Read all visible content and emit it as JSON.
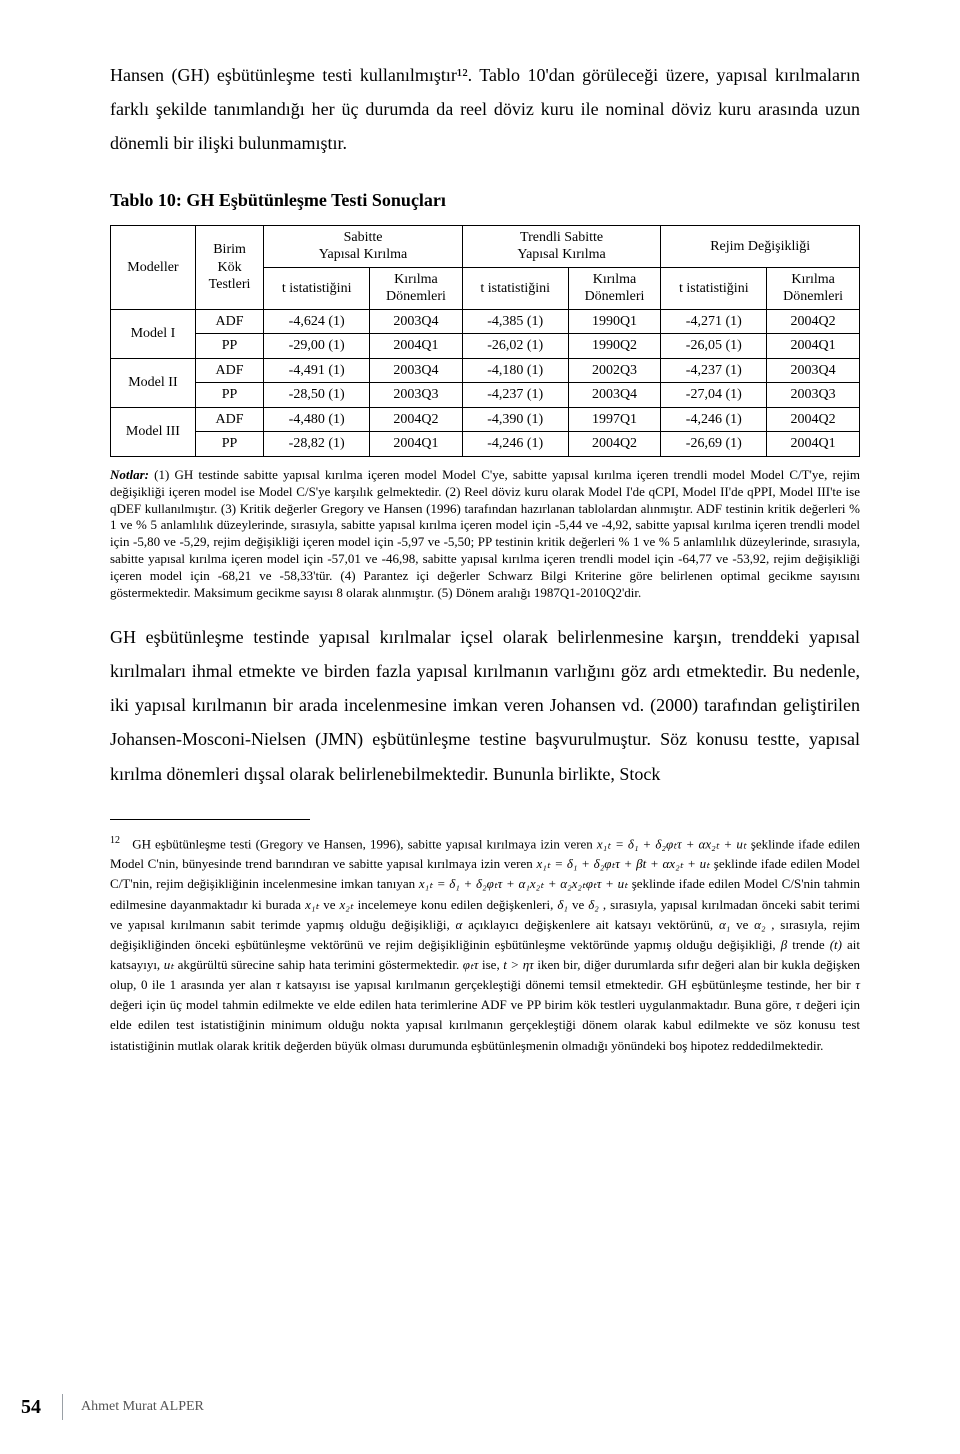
{
  "intro": "Hansen (GH) eşbütünleşme testi kullanılmıştır¹². Tablo 10'dan görüleceği üzere, yapısal kırılmaların farklı şekilde tanımlandığı her üç durumda da reel döviz kuru ile nominal döviz kuru arasında uzun dönemli bir ilişki bulunmamıştır.",
  "table_title": "Tablo 10: GH Eşbütünleşme Testi Sonuçları",
  "table": {
    "head": {
      "modeller": "Modeller",
      "birim": "Birim\nKök\nTestleri",
      "grp_sabitte": "Sabitte\nYapısal Kırılma",
      "grp_trendli": "Trendli Sabitte\nYapısal Kırılma",
      "grp_rejim": "Rejim Değişikliği",
      "tist": "t istatistiğini",
      "kirilma": "Kırılma\nDönemleri"
    },
    "rows": [
      {
        "model": "Model I",
        "test": "ADF",
        "c": [
          "-4,624 (1)",
          "2003Q4",
          "-4,385 (1)",
          "1990Q1",
          "-4,271 (1)",
          "2004Q2"
        ]
      },
      {
        "model": "",
        "test": "PP",
        "c": [
          "-29,00 (1)",
          "2004Q1",
          "-26,02 (1)",
          "1990Q2",
          "-26,05 (1)",
          "2004Q1"
        ]
      },
      {
        "model": "Model II",
        "test": "ADF",
        "c": [
          "-4,491 (1)",
          "2003Q4",
          "-4,180 (1)",
          "2002Q3",
          "-4,237 (1)",
          "2003Q4"
        ]
      },
      {
        "model": "",
        "test": "PP",
        "c": [
          "-28,50 (1)",
          "2003Q3",
          "-4,237 (1)",
          "2003Q4",
          "-27,04 (1)",
          "2003Q3"
        ]
      },
      {
        "model": "Model III",
        "test": "ADF",
        "c": [
          "-4,480 (1)",
          "2004Q2",
          "-4,390 (1)",
          "1997Q1",
          "-4,246 (1)",
          "2004Q2"
        ]
      },
      {
        "model": "",
        "test": "PP",
        "c": [
          "-28,82 (1)",
          "2004Q1",
          "-4,246 (1)",
          "2004Q2",
          "-26,69 (1)",
          "2004Q1"
        ]
      }
    ]
  },
  "notlar_label": "Notlar:",
  "notlar": " (1) GH testinde sabitte yapısal kırılma içeren model Model C'ye, sabitte yapısal kırılma içeren trendli model Model C/T'ye, rejim değişikliği içeren model ise Model C/S'ye karşılık gelmektedir. (2) Reel döviz kuru olarak Model I'de qCPI, Model II'de qPPI, Model III'te ise qDEF kullanılmıştır. (3) Kritik değerler Gregory ve Hansen (1996) tarafından hazırlanan tablolardan alınmıştır. ADF testinin kritik değerleri % 1 ve % 5 anlamlılık düzeylerinde, sırasıyla, sabitte yapısal kırılma içeren model için -5,44 ve -4,92, sabitte yapısal kırılma içeren trendli model için -5,80 ve -5,29, rejim değişikliği içeren model için -5,97 ve -5,50; PP testinin kritik değerleri % 1 ve % 5 anlamlılık düzeylerinde, sırasıyla, sabitte yapısal kırılma içeren model için -57,01 ve -46,98, sabitte yapısal kırılma içeren trendli model için -64,77 ve -53,92, rejim değişikliği içeren model için -68,21 ve -58,33'tür. (4) Parantez içi değerler Schwarz Bilgi Kriterine göre belirlenen optimal gecikme sayısını göstermektedir. Maksimum gecikme sayısı 8 olarak alınmıştır. (5) Dönem aralığı 1987Q1-2010Q2'dir.",
  "body_para": "GH eşbütünleşme testinde yapısal kırılmalar içsel olarak belirlenmesine karşın, trenddeki yapısal kırılmaları ihmal etmekte ve birden fazla yapısal kırılmanın varlığını göz ardı etmektedir. Bu nedenle, iki yapısal kırılmanın bir arada incelenmesine imkan veren Johansen vd. (2000) tarafından geliştirilen Johansen-Mosconi-Nielsen (JMN) eşbütünleşme testine başvurulmuştur. Söz konusu testte, yapısal kırılma dönemleri dışsal olarak belirlenebilmektedir. Bununla birlikte, Stock",
  "footnote": {
    "p1_a": "GH eşbütünleşme testi (Gregory ve Hansen, 1996), sabitte yapısal kırılmaya izin veren ",
    "eq1": "x₁ₜ = δ₁ + δ₂φₜτ + αx₂ₜ + uₜ",
    "p1_b": " şeklinde ifade edilen Model C'nin, bünyesinde trend barındıran ve sabitte yapısal kırılmaya izin veren ",
    "eq2": "x₁ₜ = δ₁ + δ₂φₜτ + βt + αx₂ₜ + uₜ",
    "p1_c": " şeklinde ifade edilen Model C/T'nin, rejim değişikliğinin incelenmesine imkan tanıyan ",
    "eq3": "x₁ₜ = δ₁ + δ₂φₜτ + α₁x₂ₜ + α₂x₂ₜφₜτ + uₜ",
    "p1_d": " şeklinde ifade edilen Model C/S'nin tahmin edilmesine dayanmaktadır ki burada ",
    "sym_x1": "x₁ₜ",
    "txt_ve1": " ve ",
    "sym_x2": "x₂ₜ",
    "p1_e": " incelemeye konu edilen değişkenleri, ",
    "sym_d1": "δ₁",
    "txt_ve2": " ve ",
    "sym_d2": "δ₂",
    "p1_f": " , sırasıyla, yapısal kırılmadan önceki sabit terimi ve yapısal kırılmanın sabit terimde yapmış olduğu değişikliği, ",
    "sym_alpha": "α",
    "p1_g": " açıklayıcı değişkenlere ait katsayı vektörünü, ",
    "sym_a1": "α₁",
    "txt_ve3": " ve ",
    "sym_a2": "α₂",
    "p1_h": " , sırasıyla, rejim değişikliğinden önceki eşbütünleşme vektörünü ve rejim değişikliğinin eşbütünleşme vektöründe yapmış olduğu değişikliği, ",
    "sym_beta": "β",
    "p1_i": " trende ",
    "sym_t": "(t)",
    "p1_j": " ait katsayıyı, ",
    "sym_u": "uₜ",
    "p1_k": " akgürültü sürecine sahip hata terimini göstermektedir. ",
    "sym_phi": "φₜτ",
    "p1_l": " ise, ",
    "sym_cond": "t > ητ",
    "p1_m": " iken bir, diğer durumlarda sıfır değeri alan bir kukla değişken olup, 0 ile 1 arasında yer alan ",
    "sym_tau": "τ",
    "p1_n": " katsayısı ise yapısal kırılmanın gerçekleştiği dönemi temsil etmektedir. GH eşbütünleşme testinde, her bir ",
    "sym_tau2": "τ",
    "p1_o": " değeri için üç model tahmin edilmekte ve elde edilen hata terimlerine ADF ve PP birim kök testleri uygulanmaktadır. Buna göre, ",
    "sym_tau3": "τ",
    "p1_p": " değeri için elde edilen test istatistiğinin minimum olduğu nokta yapısal kırılmanın gerçekleştiği dönem olarak kabul edilmekte ve söz konusu test istatistiğinin mutlak olarak kritik değerden büyük olması durumunda eşbütünleşmenin olmadığı yönündeki boş hipotez reddedilmektedir."
  },
  "page_number": "54",
  "author": "Ahmet Murat ALPER"
}
